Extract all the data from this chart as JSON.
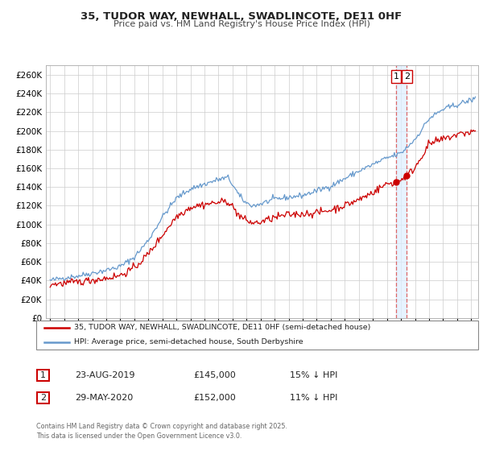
{
  "title": "35, TUDOR WAY, NEWHALL, SWADLINCOTE, DE11 0HF",
  "subtitle": "Price paid vs. HM Land Registry's House Price Index (HPI)",
  "legend_label_1": "35, TUDOR WAY, NEWHALL, SWADLINCOTE, DE11 0HF (semi-detached house)",
  "legend_label_2": "HPI: Average price, semi-detached house, South Derbyshire",
  "color_price": "#cc0000",
  "color_hpi": "#6699cc",
  "marker_color": "#cc0000",
  "vline_color": "#dd6666",
  "vband_color": "#ddeeff",
  "annotation_box_color": "#cc0000",
  "footer": "Contains HM Land Registry data © Crown copyright and database right 2025.\nThis data is licensed under the Open Government Licence v3.0.",
  "note1_date": "23-AUG-2019",
  "note1_price": "£145,000",
  "note1_hpi": "15% ↓ HPI",
  "note2_date": "29-MAY-2020",
  "note2_price": "£152,000",
  "note2_hpi": "11% ↓ HPI",
  "vline1_x": 2019.644,
  "vline2_x": 2020.413,
  "marker1_y": 145000,
  "marker2_y": 152000,
  "ylim": [
    0,
    270000
  ],
  "ytick_step": 20000,
  "xmin": 1994.7,
  "xmax": 2025.5
}
